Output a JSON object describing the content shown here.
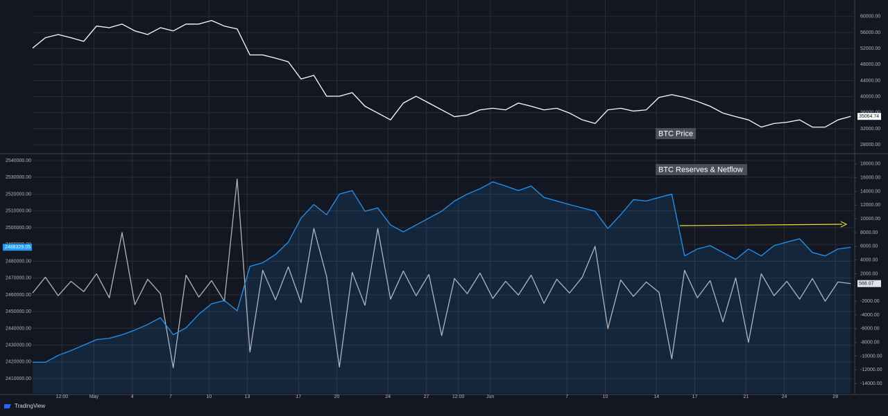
{
  "chart_data": [
    {
      "type": "line",
      "title": "BTC Price",
      "x": [
        -4.8,
        -3.8,
        -2.8,
        -1.8,
        -0.8,
        0.2,
        1.2,
        2.2,
        3.2,
        4.2,
        5.2,
        6.2,
        7.2,
        8.2,
        9.2,
        10.2,
        11.2,
        12.2,
        13.2,
        14.2,
        15.2,
        16.2,
        17.2,
        18.2,
        19.2,
        20.2,
        21.2,
        22.2,
        23.2,
        24.2,
        25.2,
        26.2,
        27.2,
        28.2,
        29.2,
        30.2,
        31.2,
        32.2,
        33.2,
        34.2,
        35.2,
        36.2,
        37.2,
        38.2,
        39.2,
        40.2,
        41.2,
        42.2,
        43.2,
        44.2,
        45.2,
        46.2,
        47.2,
        48.2,
        49.2,
        50.2,
        51.2,
        52.2,
        53.2,
        54.2,
        55.2,
        56.2,
        57.2,
        58.2,
        59.2
      ],
      "xlim": [
        -4.8,
        59.4
      ],
      "series": [
        {
          "color": "#ffffff",
          "values": [
            52100,
            54700,
            55500,
            54700,
            53800,
            57600,
            57200,
            58100,
            56400,
            55500,
            57200,
            56400,
            58100,
            58100,
            59000,
            57600,
            56900,
            50400,
            50400,
            49600,
            48700,
            44400,
            45300,
            40100,
            40100,
            41000,
            37600,
            35900,
            34200,
            38400,
            40100,
            38400,
            36700,
            35000,
            35400,
            36700,
            37100,
            36700,
            38400,
            37600,
            36700,
            37100,
            35900,
            34200,
            33300,
            36700,
            37100,
            36400,
            36700,
            39800,
            40500,
            39800,
            38800,
            37600,
            35900,
            35000,
            34200,
            32400,
            33300,
            33600,
            34200,
            32400,
            32400,
            34200,
            35064.74
          ]
        }
      ],
      "ylim": [
        26460,
        62730
      ],
      "yticks": [
        {
          "value": 28000,
          "label": "28000.00"
        },
        {
          "value": 32000,
          "label": "32000.00"
        },
        {
          "value": 36000,
          "label": "36000.00"
        },
        {
          "value": 40000,
          "label": "40000.00"
        },
        {
          "value": 44000,
          "label": "44000.00"
        },
        {
          "value": 48000,
          "label": "48000.00"
        },
        {
          "value": 52000,
          "label": "52000.00"
        },
        {
          "value": 56000,
          "label": "56000.00"
        },
        {
          "value": 60000,
          "label": "60000.00"
        }
      ],
      "grid": true
    },
    {
      "type": "line",
      "title": "BTC Reserves & Netflow",
      "x": [
        -4.8,
        -3.8,
        -2.8,
        -1.8,
        -0.8,
        0.2,
        1.2,
        2.2,
        3.2,
        4.2,
        5.2,
        6.2,
        7.2,
        8.2,
        9.2,
        10.2,
        11.2,
        12.2,
        13.2,
        14.2,
        15.2,
        16.2,
        17.2,
        18.2,
        19.2,
        20.2,
        21.2,
        22.2,
        23.2,
        24.2,
        25.2,
        26.2,
        27.2,
        28.2,
        29.2,
        30.2,
        31.2,
        32.2,
        33.2,
        34.2,
        35.2,
        36.2,
        37.2,
        38.2,
        39.2,
        40.2,
        41.2,
        42.2,
        43.2,
        44.2,
        45.2,
        46.2,
        47.2,
        48.2,
        49.2,
        50.2,
        51.2,
        52.2,
        53.2,
        54.2,
        55.2,
        56.2,
        57.2,
        58.2,
        59.2
      ],
      "xlim": [
        -4.8,
        59.4
      ],
      "xticks": [
        {
          "value": -2.5,
          "label": "12:00"
        },
        {
          "value": 0,
          "label": "May"
        },
        {
          "value": 3,
          "label": "4"
        },
        {
          "value": 6,
          "label": "7"
        },
        {
          "value": 9,
          "label": "10"
        },
        {
          "value": 12,
          "label": "13"
        },
        {
          "value": 16,
          "label": "17"
        },
        {
          "value": 19,
          "label": "20"
        },
        {
          "value": 23,
          "label": "24"
        },
        {
          "value": 26,
          "label": "27"
        },
        {
          "value": 28.5,
          "label": "12:00"
        },
        {
          "value": 31,
          "label": "Jun"
        },
        {
          "value": 37,
          "label": "7"
        },
        {
          "value": 40,
          "label": "10"
        },
        {
          "value": 44,
          "label": "14"
        },
        {
          "value": 47,
          "label": "17"
        },
        {
          "value": 51,
          "label": "21"
        },
        {
          "value": 54,
          "label": "24"
        },
        {
          "value": 58,
          "label": "28"
        }
      ],
      "series": [
        {
          "color": "#2196f3",
          "area": true,
          "values": [
            2419800,
            2419800,
            2423900,
            2426800,
            2430000,
            2433300,
            2434100,
            2436200,
            2439000,
            2442300,
            2446400,
            2436200,
            2440300,
            2448400,
            2454600,
            2456600,
            2450500,
            2477000,
            2479100,
            2484000,
            2491400,
            2505700,
            2513800,
            2507700,
            2520000,
            2522100,
            2509800,
            2511800,
            2501600,
            2497500,
            2501600,
            2505700,
            2509800,
            2515900,
            2520000,
            2523200,
            2527300,
            2524800,
            2522100,
            2524800,
            2518000,
            2515900,
            2513800,
            2511800,
            2509800,
            2499500,
            2507700,
            2516700,
            2515900,
            2518000,
            2520000,
            2483200,
            2487300,
            2489300,
            2485200,
            2481100,
            2487300,
            2483200,
            2489300,
            2491400,
            2493400,
            2485200,
            2483200,
            2487300,
            2488329.05
          ]
        },
        {
          "color": "#b2b5be",
          "axis": "y2",
          "values": [
            -800,
            1500,
            -1200,
            900,
            -600,
            2000,
            -1500,
            8000,
            -2500,
            1200,
            -900,
            -11700,
            1800,
            -1400,
            1000,
            -2000,
            15800,
            -9400,
            2500,
            -1800,
            3000,
            -2200,
            8600,
            1600,
            -11600,
            2200,
            -2600,
            8600,
            -1700,
            2400,
            -1200,
            1900,
            -7000,
            1300,
            -900,
            2100,
            -1600,
            900,
            -1100,
            1800,
            -2300,
            1200,
            -800,
            1500,
            6000,
            -6000,
            1100,
            -1300,
            800,
            -700,
            -10400,
            2500,
            -1500,
            1000,
            -5000,
            1400,
            -8000,
            2000,
            -1200,
            900,
            -1700,
            1300,
            -2000,
            800,
            568.07
          ]
        }
      ],
      "ylim": [
        2401400,
        2542450
      ],
      "yticks": [
        {
          "value": 2410000,
          "label": "2410000.00"
        },
        {
          "value": 2420000,
          "label": "2420000.00"
        },
        {
          "value": 2430000,
          "label": "2430000.00"
        },
        {
          "value": 2440000,
          "label": "2440000.00"
        },
        {
          "value": 2450000,
          "label": "2450000.00"
        },
        {
          "value": 2460000,
          "label": "2460000.00"
        },
        {
          "value": 2470000,
          "label": "2470000.00"
        },
        {
          "value": 2480000,
          "label": "2480000.00"
        },
        {
          "value": 2490000,
          "label": "2490000.00"
        },
        {
          "value": 2500000,
          "label": "2500000.00"
        },
        {
          "value": 2510000,
          "label": "2510000.00"
        },
        {
          "value": 2520000,
          "label": "2520000.00"
        },
        {
          "value": 2530000,
          "label": "2530000.00"
        },
        {
          "value": 2540000,
          "label": "2540000.00"
        }
      ],
      "y2lim": [
        -15400,
        19100
      ],
      "y2ticks": [
        {
          "value": -14000,
          "label": "-14000.00"
        },
        {
          "value": -12000,
          "label": "-12000.00"
        },
        {
          "value": -10000,
          "label": "-10000.00"
        },
        {
          "value": -8000,
          "label": "-8000.00"
        },
        {
          "value": -6000,
          "label": "-6000.00"
        },
        {
          "value": -4000,
          "label": "-4000.00"
        },
        {
          "value": -2000,
          "label": "-2000.00"
        },
        {
          "value": 2000,
          "label": "2000.00"
        },
        {
          "value": 4000,
          "label": "4000.00"
        },
        {
          "value": 6000,
          "label": "6000.00"
        },
        {
          "value": 8000,
          "label": "8000.00"
        },
        {
          "value": 10000,
          "label": "10000.00"
        },
        {
          "value": 12000,
          "label": "12000.00"
        },
        {
          "value": 14000,
          "label": "14000.00"
        },
        {
          "value": 16000,
          "label": "16000.00"
        },
        {
          "value": 18000,
          "label": "18000.00"
        }
      ],
      "grid": true
    }
  ],
  "brand": "TradingView"
}
